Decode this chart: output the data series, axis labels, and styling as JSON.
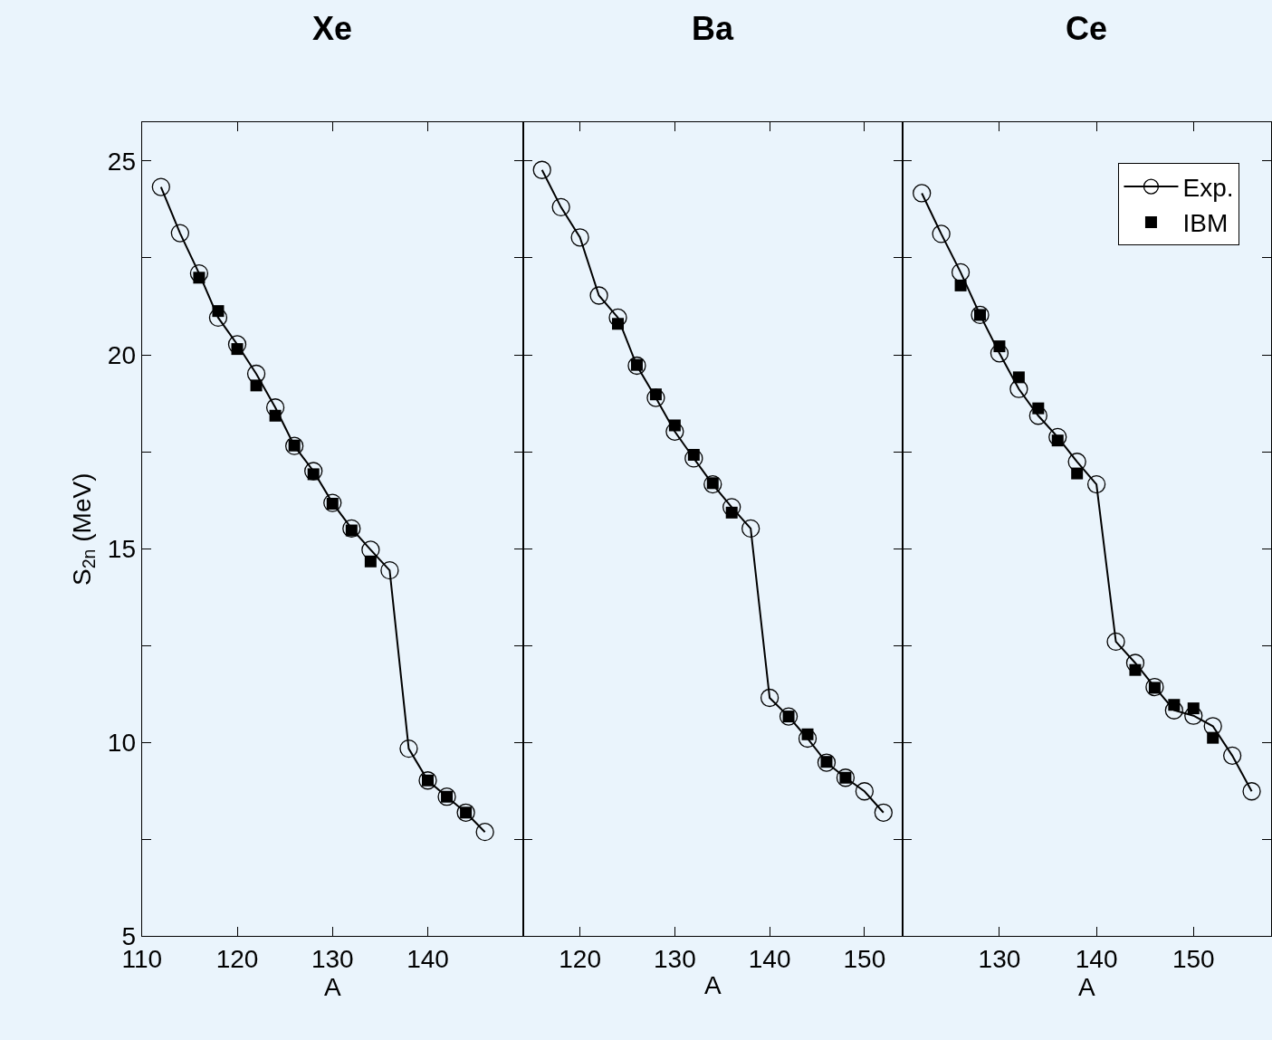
{
  "chart_data": [
    {
      "type": "line",
      "title": "Xe",
      "xlabel": "A",
      "ylabel": "S$_{2n}$ (MeV)",
      "xlim": [
        110,
        150
      ],
      "xticks": [
        110,
        120,
        130,
        140
      ],
      "ylim": [
        5,
        26
      ],
      "yticks": [
        5,
        {
          "value": 7.5,
          "label": null
        },
        10,
        {
          "value": 12.5,
          "label": null
        },
        15,
        {
          "value": 17.5,
          "label": null
        },
        20,
        {
          "value": 22.5,
          "label": null
        },
        25
      ],
      "legend": false,
      "series": [
        {
          "marker": "circle",
          "color": "#000000",
          "x": [
            112,
            114,
            116,
            118,
            120,
            122,
            124,
            126,
            128,
            130,
            132,
            134,
            136,
            138,
            140,
            142,
            144,
            146
          ],
          "values": [
            24.33,
            23.14,
            22.1,
            20.96,
            20.27,
            19.51,
            18.64,
            17.65,
            17.0,
            16.18,
            15.52,
            14.97,
            14.44,
            9.84,
            9.02,
            8.6,
            8.19,
            7.69
          ]
        },
        {
          "type": "scatter",
          "marker": "square",
          "color": "#000000",
          "x": [
            116,
            118,
            120,
            122,
            124,
            126,
            128,
            130,
            132,
            134,
            140,
            142,
            144
          ],
          "values": [
            21.99,
            21.13,
            20.15,
            19.21,
            18.43,
            17.66,
            16.92,
            16.16,
            15.47,
            14.67,
            9.02,
            8.6,
            8.19
          ]
        }
      ]
    },
    {
      "type": "line",
      "title": "Ba",
      "xlabel": "A",
      "xlim": [
        114,
        154
      ],
      "xticks": [
        120,
        130,
        140,
        150
      ],
      "ylim": [
        5,
        26
      ],
      "yticks": [
        5,
        {
          "value": 7.5,
          "label": null
        },
        10,
        {
          "value": 12.5,
          "label": null
        },
        15,
        {
          "value": 17.5,
          "label": null
        },
        20,
        {
          "value": 22.5,
          "label": null
        },
        25
      ],
      "tick_labels": "x",
      "legend": false,
      "series": [
        {
          "marker": "circle",
          "color": "#000000",
          "x": [
            116,
            118,
            120,
            122,
            124,
            126,
            128,
            130,
            132,
            134,
            136,
            138,
            140,
            142,
            144,
            146,
            148,
            150,
            152
          ],
          "values": [
            24.77,
            23.81,
            23.03,
            21.53,
            20.96,
            19.72,
            18.89,
            18.02,
            17.33,
            16.66,
            16.07,
            15.52,
            11.15,
            10.67,
            10.1,
            9.48,
            9.09,
            8.74,
            8.19
          ]
        },
        {
          "type": "scatter",
          "marker": "square",
          "color": "#000000",
          "x": [
            124,
            126,
            128,
            130,
            132,
            134,
            136,
            142,
            144,
            146,
            148
          ],
          "values": [
            20.8,
            19.74,
            18.98,
            18.18,
            17.42,
            16.69,
            15.93,
            10.67,
            10.21,
            9.5,
            9.09
          ]
        }
      ]
    },
    {
      "type": "line",
      "title": "Ce",
      "xlabel": "A",
      "xlim": [
        120,
        158
      ],
      "xticks": [
        130,
        140,
        150
      ],
      "ylim": [
        5,
        26
      ],
      "yticks": [
        5,
        {
          "value": 7.5,
          "label": null
        },
        10,
        {
          "value": 12.5,
          "label": null
        },
        15,
        {
          "value": 17.5,
          "label": null
        },
        20,
        {
          "value": 22.5,
          "label": null
        },
        25
      ],
      "tick_labels": "x",
      "legend": "top right",
      "series": [
        {
          "name": "Exp.",
          "marker": "circle",
          "color": "#000000",
          "x": [
            122,
            124,
            126,
            128,
            130,
            132,
            134,
            136,
            138,
            140,
            142,
            144,
            146,
            148,
            150,
            152,
            154,
            156
          ],
          "values": [
            24.17,
            23.12,
            22.13,
            21.03,
            20.04,
            19.12,
            18.43,
            17.88,
            17.24,
            16.66,
            12.6,
            12.05,
            11.43,
            10.83,
            10.69,
            10.42,
            9.66,
            8.74
          ]
        },
        {
          "type": "scatter",
          "name": "IBM",
          "marker": "square",
          "color": "#000000",
          "x": [
            126,
            128,
            130,
            132,
            134,
            136,
            138,
            144,
            146,
            148,
            150,
            152
          ],
          "values": [
            21.79,
            21.03,
            20.22,
            19.42,
            18.62,
            17.79,
            16.94,
            11.87,
            11.41,
            10.97,
            10.88,
            10.12
          ]
        }
      ]
    }
  ]
}
